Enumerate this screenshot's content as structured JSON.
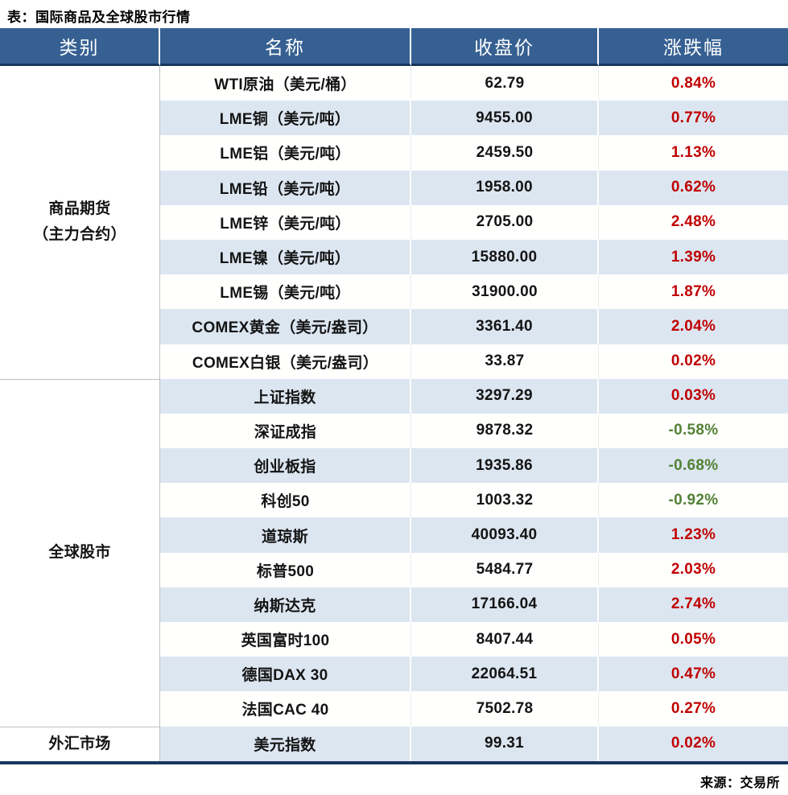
{
  "title": "表：国际商品及全球股市行情",
  "source": "来源：交易所",
  "colors": {
    "header_bg": "#366092",
    "header_border": "#17375D",
    "row_alt_bg": "#DCE6F1",
    "positive": "#C00000",
    "negative": "#538135"
  },
  "table": {
    "headers": [
      "类别",
      "名称",
      "收盘价",
      "涨跌幅"
    ],
    "sections": [
      {
        "category": "商品期货\n（主力合约）",
        "rows": [
          {
            "name": "WTI原油（美元/桶）",
            "close": "62.79",
            "change": "0.84%"
          },
          {
            "name": "LME铜（美元/吨）",
            "close": "9455.00",
            "change": "0.77%"
          },
          {
            "name": "LME铝（美元/吨）",
            "close": "2459.50",
            "change": "1.13%"
          },
          {
            "name": "LME铅（美元/吨）",
            "close": "1958.00",
            "change": "0.62%"
          },
          {
            "name": "LME锌（美元/吨）",
            "close": "2705.00",
            "change": "2.48%"
          },
          {
            "name": "LME镍（美元/吨）",
            "close": "15880.00",
            "change": "1.39%"
          },
          {
            "name": "LME锡（美元/吨）",
            "close": "31900.00",
            "change": "1.87%"
          },
          {
            "name": "COMEX黄金（美元/盎司）",
            "close": "3361.40",
            "change": "2.04%"
          },
          {
            "name": "COMEX白银（美元/盎司）",
            "close": "33.87",
            "change": "0.02%"
          }
        ]
      },
      {
        "category": "全球股市",
        "rows": [
          {
            "name": "上证指数",
            "close": "3297.29",
            "change": "0.03%"
          },
          {
            "name": "深证成指",
            "close": "9878.32",
            "change": "-0.58%"
          },
          {
            "name": "创业板指",
            "close": "1935.86",
            "change": "-0.68%"
          },
          {
            "name": "科创50",
            "close": "1003.32",
            "change": "-0.92%"
          },
          {
            "name": "道琼斯",
            "close": "40093.40",
            "change": "1.23%"
          },
          {
            "name": "标普500",
            "close": "5484.77",
            "change": "2.03%"
          },
          {
            "name": "纳斯达克",
            "close": "17166.04",
            "change": "2.74%"
          },
          {
            "name": "英国富时100",
            "close": "8407.44",
            "change": "0.05%"
          },
          {
            "name": "德国DAX 30",
            "close": "22064.51",
            "change": "0.47%"
          },
          {
            "name": "法国CAC 40",
            "close": "7502.78",
            "change": "0.27%"
          }
        ]
      },
      {
        "category": "外汇市场",
        "rows": [
          {
            "name": "美元指数",
            "close": "99.31",
            "change": "0.02%"
          }
        ]
      }
    ]
  },
  "chart_data": {
    "type": "table",
    "title": "表：国际商品及全球股市行情",
    "columns": [
      "类别",
      "名称",
      "收盘价",
      "涨跌幅"
    ],
    "rows": [
      [
        "商品期货（主力合约）",
        "WTI原油（美元/桶）",
        62.79,
        "0.84%"
      ],
      [
        "商品期货（主力合约）",
        "LME铜（美元/吨）",
        9455.0,
        "0.77%"
      ],
      [
        "商品期货（主力合约）",
        "LME铝（美元/吨）",
        2459.5,
        "1.13%"
      ],
      [
        "商品期货（主力合约）",
        "LME铅（美元/吨）",
        1958.0,
        "0.62%"
      ],
      [
        "商品期货（主力合约）",
        "LME锌（美元/吨）",
        2705.0,
        "2.48%"
      ],
      [
        "商品期货（主力合约）",
        "LME镍（美元/吨）",
        15880.0,
        "1.39%"
      ],
      [
        "商品期货（主力合约）",
        "LME锡（美元/吨）",
        31900.0,
        "1.87%"
      ],
      [
        "商品期货（主力合约）",
        "COMEX黄金（美元/盎司）",
        3361.4,
        "2.04%"
      ],
      [
        "商品期货（主力合约）",
        "COMEX白银（美元/盎司）",
        33.87,
        "0.02%"
      ],
      [
        "全球股市",
        "上证指数",
        3297.29,
        "0.03%"
      ],
      [
        "全球股市",
        "深证成指",
        9878.32,
        "-0.58%"
      ],
      [
        "全球股市",
        "创业板指",
        1935.86,
        "-0.68%"
      ],
      [
        "全球股市",
        "科创50",
        1003.32,
        "-0.92%"
      ],
      [
        "全球股市",
        "道琼斯",
        40093.4,
        "1.23%"
      ],
      [
        "全球股市",
        "标普500",
        5484.77,
        "2.03%"
      ],
      [
        "全球股市",
        "纳斯达克",
        17166.04,
        "2.74%"
      ],
      [
        "全球股市",
        "英国富时100",
        8407.44,
        "0.05%"
      ],
      [
        "全球股市",
        "德国DAX 30",
        22064.51,
        "0.47%"
      ],
      [
        "全球股市",
        "法国CAC 40",
        7502.78,
        "0.27%"
      ],
      [
        "外汇市场",
        "美元指数",
        99.31,
        "0.02%"
      ]
    ],
    "source_note": "来源：交易所"
  }
}
